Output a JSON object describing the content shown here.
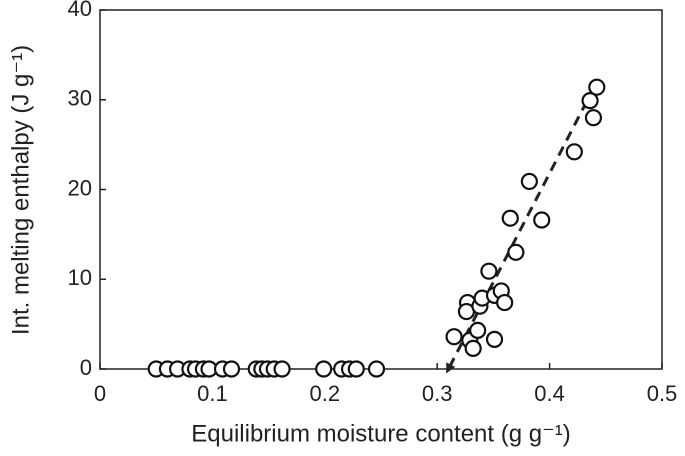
{
  "chart_data": {
    "type": "scatter",
    "xlabel": "Equilibrium moisture content (g g⁻¹)",
    "ylabel": "Int. melting enthalpy (J g⁻¹)",
    "xlim": [
      0,
      0.5
    ],
    "ylim": [
      0,
      40
    ],
    "xticks": [
      0,
      0.1,
      0.2,
      0.3,
      0.4,
      0.5
    ],
    "yticks": [
      0,
      10,
      20,
      30,
      40
    ],
    "color": "#ffffff",
    "series": [
      {
        "x": [
          0.05,
          0.06,
          0.069,
          0.08,
          0.085,
          0.092,
          0.097,
          0.109,
          0.117,
          0.139,
          0.144,
          0.149,
          0.155,
          0.162,
          0.199,
          0.215,
          0.222,
          0.228,
          0.246,
          0.315,
          0.329,
          0.332,
          0.336,
          0.351,
          0.327,
          0.326,
          0.338,
          0.34,
          0.351,
          0.357,
          0.36,
          0.346,
          0.37,
          0.365,
          0.393,
          0.382,
          0.422,
          0.436,
          0.439,
          0.442
        ],
        "values": [
          0,
          0,
          0,
          0,
          0,
          0,
          0,
          0,
          0,
          0,
          0,
          0,
          0,
          0,
          0,
          0,
          0,
          0,
          0,
          3.6,
          3.2,
          2.3,
          4.3,
          3.3,
          7.4,
          6.4,
          7.0,
          7.9,
          8.2,
          8.7,
          7.4,
          10.9,
          13.0,
          16.8,
          16.6,
          20.9,
          24.2,
          29.9,
          28.0,
          31.4
        ]
      }
    ],
    "trend_line": {
      "x": [
        0.44,
        0.31
      ],
      "values": [
        31.5,
        0
      ]
    }
  }
}
